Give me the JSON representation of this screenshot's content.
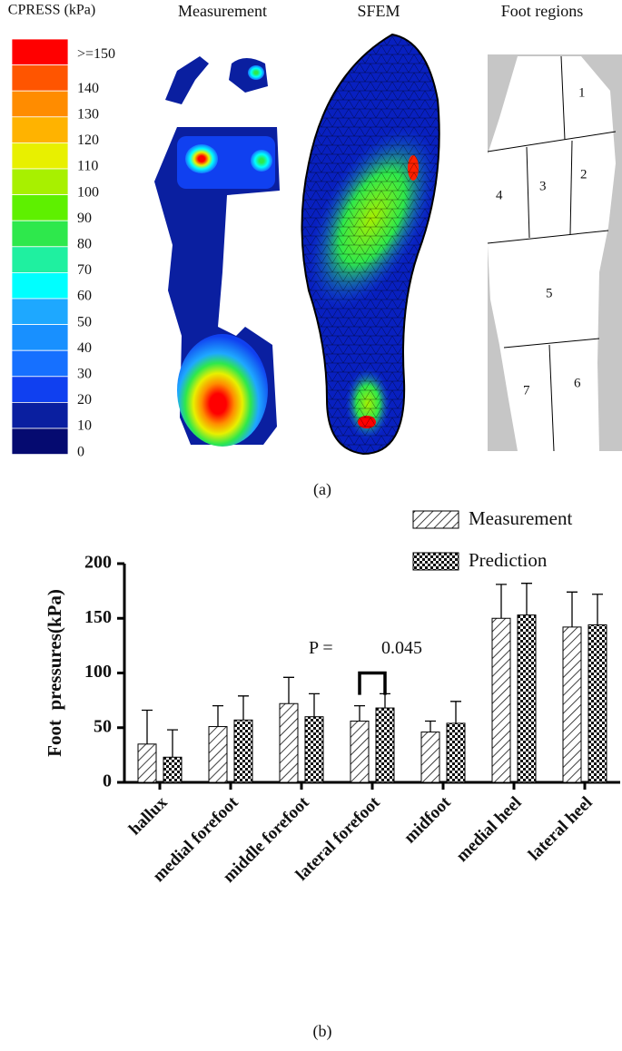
{
  "panel_a": {
    "caption": "(a)",
    "colorbar": {
      "title": "CPRESS (kPa)",
      "labels": [
        ">=150",
        "140",
        "130",
        "120",
        "110",
        "100",
        "90",
        "80",
        "70",
        "60",
        "50",
        "40",
        "30",
        "20",
        "10",
        "0"
      ],
      "colors": [
        "#ff0000",
        "#ff5500",
        "#ff8c00",
        "#ffb300",
        "#e8f000",
        "#a8f000",
        "#5ef000",
        "#2ee84c",
        "#1ff0a0",
        "#00ffff",
        "#1ea8ff",
        "#1890ff",
        "#1670ff",
        "#1040f0",
        "#0a1fa0",
        "#050a70"
      ]
    },
    "titles": [
      "Measurement",
      "SFEM",
      "Foot regions"
    ],
    "regions": [
      "1",
      "2",
      "3",
      "4",
      "5",
      "6",
      "7"
    ]
  },
  "chart_data": {
    "type": "bar",
    "categories": [
      "hallux",
      "medial forefoot",
      "middle forefoot",
      "lateral forefoot",
      "midfoot",
      "medial heel",
      "lateral heel"
    ],
    "series": [
      {
        "name": "Measurement",
        "pattern": "hatch",
        "color": "#000000",
        "values": [
          35,
          51,
          72,
          56,
          46,
          150,
          142
        ],
        "errors": [
          31,
          19,
          24,
          14,
          10,
          31,
          32
        ]
      },
      {
        "name": "Prediction",
        "pattern": "checker",
        "color": "#000000",
        "values": [
          23,
          57,
          60,
          68,
          54,
          153,
          144
        ],
        "errors": [
          25,
          22,
          21,
          13,
          20,
          29,
          28
        ]
      }
    ],
    "ylabel": "Foot  pressures(kPa)",
    "ylim": [
      0,
      200
    ],
    "yticks": [
      0,
      50,
      100,
      150,
      200
    ],
    "annotations": [
      "P =",
      "0.045"
    ],
    "legend": "top-right",
    "caption": "(b)"
  }
}
